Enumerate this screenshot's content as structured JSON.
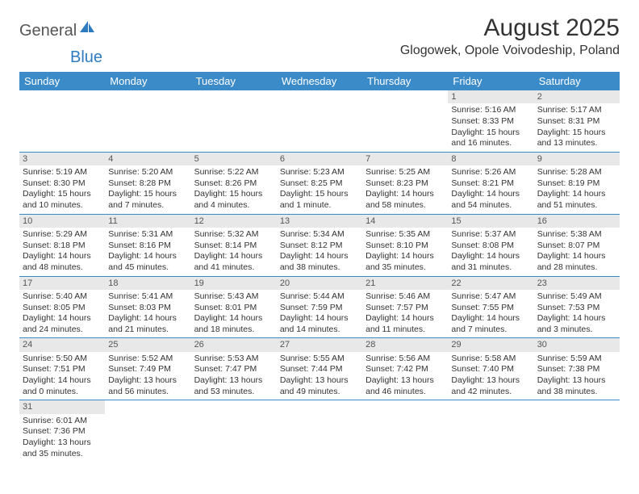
{
  "logo": {
    "text1": "General",
    "text2": "Blue"
  },
  "title": "August 2025",
  "location": "Glogowek, Opole Voivodeship, Poland",
  "colors": {
    "header_bg": "#3b8bc8",
    "header_text": "#ffffff",
    "daynum_bg": "#e8e8e8",
    "border": "#3b8bc8",
    "text": "#333333",
    "logo_gray": "#555555",
    "logo_blue": "#2f7bbf"
  },
  "weekdays": [
    "Sunday",
    "Monday",
    "Tuesday",
    "Wednesday",
    "Thursday",
    "Friday",
    "Saturday"
  ],
  "weeks": [
    [
      null,
      null,
      null,
      null,
      null,
      {
        "n": "1",
        "sr": "5:16 AM",
        "ss": "8:33 PM",
        "dl": "15 hours and 16 minutes."
      },
      {
        "n": "2",
        "sr": "5:17 AM",
        "ss": "8:31 PM",
        "dl": "15 hours and 13 minutes."
      }
    ],
    [
      {
        "n": "3",
        "sr": "5:19 AM",
        "ss": "8:30 PM",
        "dl": "15 hours and 10 minutes."
      },
      {
        "n": "4",
        "sr": "5:20 AM",
        "ss": "8:28 PM",
        "dl": "15 hours and 7 minutes."
      },
      {
        "n": "5",
        "sr": "5:22 AM",
        "ss": "8:26 PM",
        "dl": "15 hours and 4 minutes."
      },
      {
        "n": "6",
        "sr": "5:23 AM",
        "ss": "8:25 PM",
        "dl": "15 hours and 1 minute."
      },
      {
        "n": "7",
        "sr": "5:25 AM",
        "ss": "8:23 PM",
        "dl": "14 hours and 58 minutes."
      },
      {
        "n": "8",
        "sr": "5:26 AM",
        "ss": "8:21 PM",
        "dl": "14 hours and 54 minutes."
      },
      {
        "n": "9",
        "sr": "5:28 AM",
        "ss": "8:19 PM",
        "dl": "14 hours and 51 minutes."
      }
    ],
    [
      {
        "n": "10",
        "sr": "5:29 AM",
        "ss": "8:18 PM",
        "dl": "14 hours and 48 minutes."
      },
      {
        "n": "11",
        "sr": "5:31 AM",
        "ss": "8:16 PM",
        "dl": "14 hours and 45 minutes."
      },
      {
        "n": "12",
        "sr": "5:32 AM",
        "ss": "8:14 PM",
        "dl": "14 hours and 41 minutes."
      },
      {
        "n": "13",
        "sr": "5:34 AM",
        "ss": "8:12 PM",
        "dl": "14 hours and 38 minutes."
      },
      {
        "n": "14",
        "sr": "5:35 AM",
        "ss": "8:10 PM",
        "dl": "14 hours and 35 minutes."
      },
      {
        "n": "15",
        "sr": "5:37 AM",
        "ss": "8:08 PM",
        "dl": "14 hours and 31 minutes."
      },
      {
        "n": "16",
        "sr": "5:38 AM",
        "ss": "8:07 PM",
        "dl": "14 hours and 28 minutes."
      }
    ],
    [
      {
        "n": "17",
        "sr": "5:40 AM",
        "ss": "8:05 PM",
        "dl": "14 hours and 24 minutes."
      },
      {
        "n": "18",
        "sr": "5:41 AM",
        "ss": "8:03 PM",
        "dl": "14 hours and 21 minutes."
      },
      {
        "n": "19",
        "sr": "5:43 AM",
        "ss": "8:01 PM",
        "dl": "14 hours and 18 minutes."
      },
      {
        "n": "20",
        "sr": "5:44 AM",
        "ss": "7:59 PM",
        "dl": "14 hours and 14 minutes."
      },
      {
        "n": "21",
        "sr": "5:46 AM",
        "ss": "7:57 PM",
        "dl": "14 hours and 11 minutes."
      },
      {
        "n": "22",
        "sr": "5:47 AM",
        "ss": "7:55 PM",
        "dl": "14 hours and 7 minutes."
      },
      {
        "n": "23",
        "sr": "5:49 AM",
        "ss": "7:53 PM",
        "dl": "14 hours and 3 minutes."
      }
    ],
    [
      {
        "n": "24",
        "sr": "5:50 AM",
        "ss": "7:51 PM",
        "dl": "14 hours and 0 minutes."
      },
      {
        "n": "25",
        "sr": "5:52 AM",
        "ss": "7:49 PM",
        "dl": "13 hours and 56 minutes."
      },
      {
        "n": "26",
        "sr": "5:53 AM",
        "ss": "7:47 PM",
        "dl": "13 hours and 53 minutes."
      },
      {
        "n": "27",
        "sr": "5:55 AM",
        "ss": "7:44 PM",
        "dl": "13 hours and 49 minutes."
      },
      {
        "n": "28",
        "sr": "5:56 AM",
        "ss": "7:42 PM",
        "dl": "13 hours and 46 minutes."
      },
      {
        "n": "29",
        "sr": "5:58 AM",
        "ss": "7:40 PM",
        "dl": "13 hours and 42 minutes."
      },
      {
        "n": "30",
        "sr": "5:59 AM",
        "ss": "7:38 PM",
        "dl": "13 hours and 38 minutes."
      }
    ],
    [
      {
        "n": "31",
        "sr": "6:01 AM",
        "ss": "7:36 PM",
        "dl": "13 hours and 35 minutes."
      },
      null,
      null,
      null,
      null,
      null,
      null
    ]
  ],
  "labels": {
    "sunrise": "Sunrise:",
    "sunset": "Sunset:",
    "daylight": "Daylight:"
  }
}
